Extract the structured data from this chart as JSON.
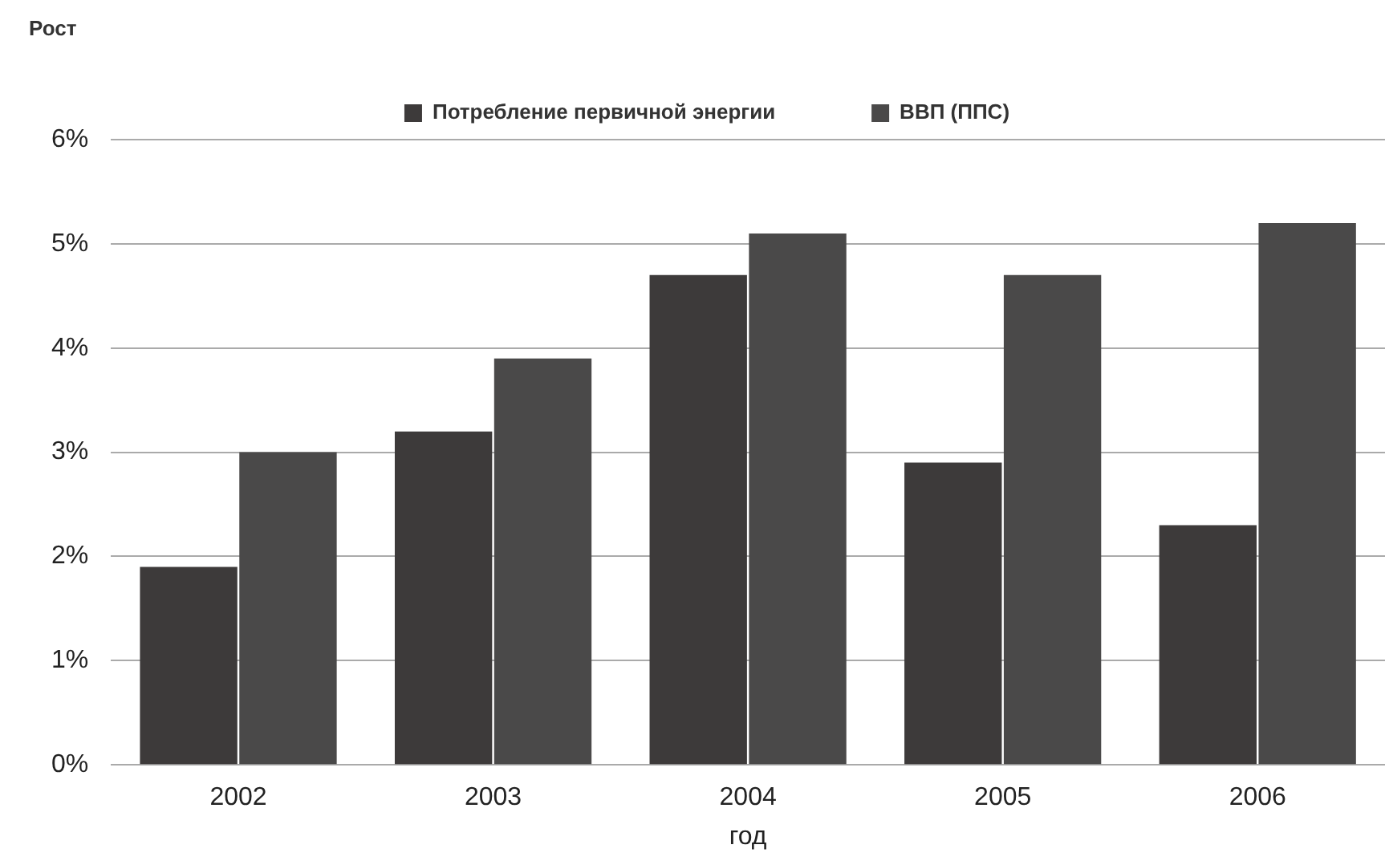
{
  "chart_data": {
    "type": "bar",
    "ylabel": "Рост",
    "xlabel": "год",
    "categories": [
      "2002",
      "2003",
      "2004",
      "2005",
      "2006"
    ],
    "series": [
      {
        "name": "Потребление первичной энергии",
        "color": "#3d3a3a",
        "values": [
          1.9,
          3.2,
          4.7,
          2.9,
          2.3
        ]
      },
      {
        "name": "ВВП (ППС)",
        "color": "#4a4949",
        "values": [
          3.0,
          3.9,
          5.1,
          4.7,
          5.2
        ]
      }
    ],
    "ylim": [
      0,
      6
    ],
    "yticks": [
      {
        "value": 0,
        "label": "0%"
      },
      {
        "value": 1,
        "label": "1%"
      },
      {
        "value": 2,
        "label": "2%"
      },
      {
        "value": 3,
        "label": "3%"
      },
      {
        "value": 4,
        "label": "4%"
      },
      {
        "value": 5,
        "label": "5%"
      },
      {
        "value": 6,
        "label": "6%"
      }
    ],
    "grid": "y",
    "legend": "top"
  }
}
